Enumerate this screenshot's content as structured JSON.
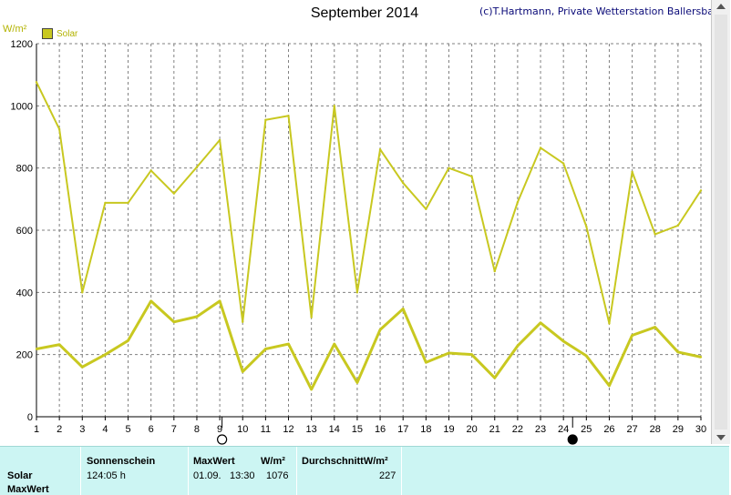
{
  "header": {
    "title": "September 2014",
    "copyright": "(c)T.Hartmann, Private Wetterstation Ballersbach",
    "unit": "W/m²"
  },
  "colors": {
    "series": "#c8c820",
    "grid": "#808080",
    "axis_text": "#000000",
    "unit_text": "#b3b300",
    "stats_bg": "#ccf5f3"
  },
  "chart_data": {
    "type": "line",
    "title": "September 2014",
    "ylabel": "W/m²",
    "xlabel": "",
    "x": [
      1,
      2,
      3,
      4,
      5,
      6,
      7,
      8,
      9,
      10,
      11,
      12,
      13,
      14,
      15,
      16,
      17,
      18,
      19,
      20,
      21,
      22,
      23,
      24,
      25,
      26,
      27,
      28,
      29,
      30
    ],
    "xlim": [
      1,
      30
    ],
    "ylim": [
      0,
      1200
    ],
    "yticks": [
      0,
      200,
      400,
      600,
      800,
      1000,
      1200
    ],
    "grid": true,
    "legend": "top-left",
    "series": [
      {
        "name": "Solar",
        "role": "max",
        "values": [
          1076,
          925,
          400,
          688,
          688,
          792,
          718,
          803,
          890,
          305,
          955,
          968,
          320,
          1000,
          400,
          860,
          752,
          668,
          800,
          773,
          468,
          690,
          865,
          815,
          612,
          300,
          788,
          587,
          615,
          728
        ]
      },
      {
        "role": "average",
        "values": [
          218,
          232,
          160,
          200,
          245,
          372,
          305,
          322,
          372,
          145,
          218,
          234,
          88,
          234,
          110,
          280,
          347,
          175,
          205,
          200,
          125,
          228,
          302,
          243,
          196,
          100,
          262,
          288,
          208,
          192
        ]
      }
    ],
    "moon_phases": [
      {
        "day": 9.1,
        "phase": "full"
      },
      {
        "day": 24.4,
        "phase": "new"
      }
    ]
  },
  "stats": {
    "row_labels": [
      "Solar",
      "MaxWert"
    ],
    "sunshine_header": "Sonnenschein",
    "sunshine_value": "124:05 h",
    "max_header": "MaxWert",
    "max_unit": "W/m²",
    "max_date": "01.09.",
    "max_time": "13:30",
    "max_value": "1076",
    "avg_header": "DurchschnittW/m²",
    "avg_value": "227"
  }
}
